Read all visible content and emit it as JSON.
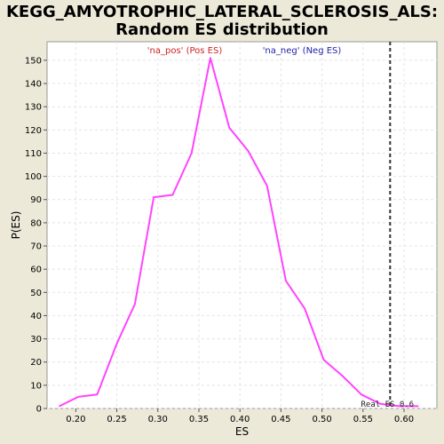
{
  "chart_data": {
    "type": "line",
    "title_line1": "KEGG_AMYOTROPHIC_LATERAL_SCLEROSIS_ALS:",
    "title_line2": "Random ES distribution",
    "xlabel": "ES",
    "ylabel": "P(ES)",
    "xlim": [
      0.165,
      0.64
    ],
    "ylim": [
      0,
      158
    ],
    "x_ticks": [
      0.2,
      0.25,
      0.3,
      0.35,
      0.4,
      0.45,
      0.5,
      0.55,
      0.6
    ],
    "x_tick_labels": [
      "0.20",
      "0.25",
      "0.30",
      "0.35",
      "0.40",
      "0.45",
      "0.50",
      "0.55",
      "0.60"
    ],
    "y_ticks": [
      0,
      10,
      20,
      30,
      40,
      50,
      60,
      70,
      80,
      90,
      100,
      110,
      120,
      130,
      140,
      150
    ],
    "y_tick_labels": [
      "0",
      "10",
      "20",
      "30",
      "40",
      "50",
      "60",
      "70",
      "80",
      "90",
      "100",
      "110",
      "120",
      "130",
      "140",
      "150"
    ],
    "grid": true,
    "legend": [
      {
        "label": "'na_pos' (Pos ES)",
        "color": "#cc2222"
      },
      {
        "label": "'na_neg' (Neg ES)",
        "color": "#2222aa"
      }
    ],
    "legend_placement": "top",
    "series": [
      {
        "color": "#ff44ff",
        "x": [
          0.18,
          0.203,
          0.226,
          0.25,
          0.272,
          0.295,
          0.318,
          0.341,
          0.364,
          0.387,
          0.41,
          0.433,
          0.456,
          0.479,
          0.502,
          0.525,
          0.548,
          0.571,
          0.594,
          0.617
        ],
        "y": [
          1,
          5,
          6,
          28,
          45,
          91,
          92,
          110,
          151,
          121,
          111,
          96,
          55,
          43,
          21,
          14,
          6,
          2,
          1,
          1
        ]
      }
    ],
    "real_es": {
      "value": 0.583,
      "label": "Real ES 0.6",
      "color": "#333333"
    }
  }
}
